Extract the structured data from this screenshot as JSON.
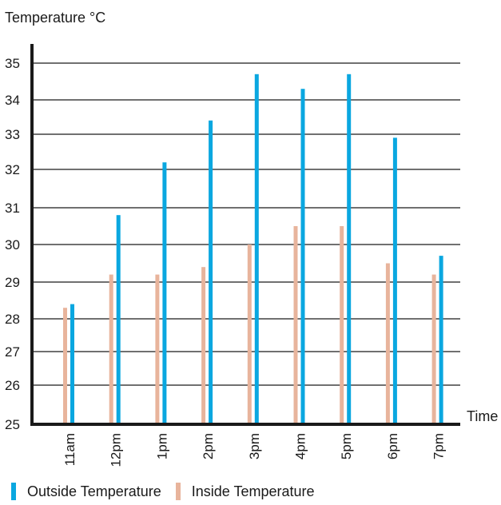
{
  "chart_data": {
    "type": "bar",
    "ylabel": "Temperature °C",
    "xlabel": "Time",
    "categories": [
      "11am",
      "12pm",
      "1pm",
      "2pm",
      "3pm",
      "4pm",
      "5pm",
      "6pm",
      "7pm"
    ],
    "y_ticks": [
      "25",
      "26",
      "27",
      "28",
      "29",
      "30",
      "31",
      "32",
      "33",
      "34",
      "35"
    ],
    "ylim": [
      25,
      35.5
    ],
    "grid": true,
    "legend_position": "bottom-left",
    "series": [
      {
        "name": "Outside Temperature",
        "color": "#0aa7e0",
        "values": [
          28.4,
          30.8,
          32.2,
          33.4,
          34.7,
          34.3,
          34.7,
          32.9,
          29.7
        ]
      },
      {
        "name": "Inside Temperature",
        "color": "#e8b49c",
        "values": [
          28.3,
          29.2,
          29.2,
          29.4,
          30.0,
          30.5,
          30.5,
          29.5,
          29.2
        ]
      }
    ]
  }
}
